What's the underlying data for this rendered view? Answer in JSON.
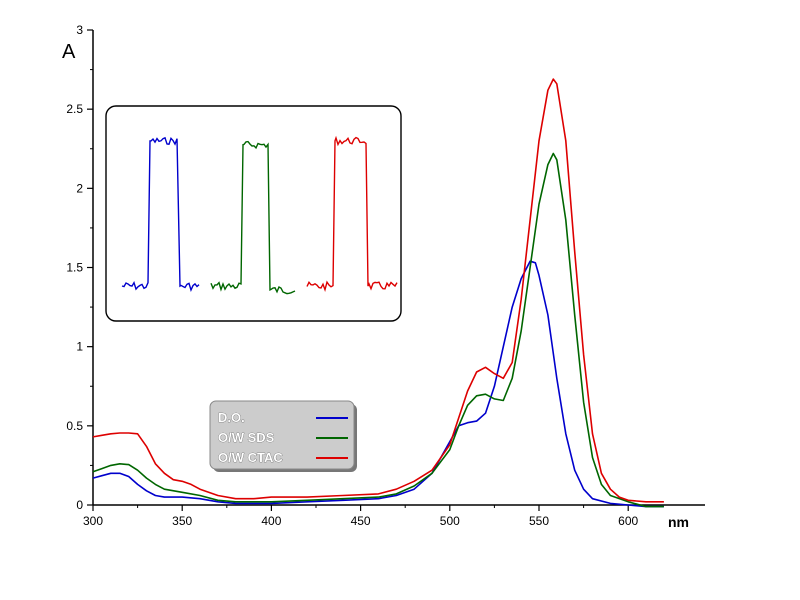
{
  "chart_data": {
    "type": "line",
    "ylabel": "A",
    "xlabel": "nm",
    "xlim": [
      300,
      620
    ],
    "ylim": [
      0,
      3
    ],
    "x_ticks": [
      "300",
      "350",
      "400",
      "450",
      "500",
      "550",
      "600"
    ],
    "y_ticks": [
      "0",
      "0.5",
      "1",
      "1.5",
      "2",
      "2.5",
      "3"
    ],
    "grid": false,
    "legend_position": "lower-left",
    "series": [
      {
        "name": "D.O.",
        "color": "#0000cc",
        "points": [
          [
            300,
            0.17
          ],
          [
            305,
            0.185
          ],
          [
            310,
            0.2
          ],
          [
            315,
            0.2
          ],
          [
            320,
            0.18
          ],
          [
            325,
            0.13
          ],
          [
            330,
            0.09
          ],
          [
            335,
            0.06
          ],
          [
            340,
            0.05
          ],
          [
            350,
            0.05
          ],
          [
            360,
            0.04
          ],
          [
            370,
            0.02
          ],
          [
            380,
            0.01
          ],
          [
            390,
            0.01
          ],
          [
            400,
            0.01
          ],
          [
            420,
            0.02
          ],
          [
            440,
            0.03
          ],
          [
            460,
            0.04
          ],
          [
            470,
            0.06
          ],
          [
            480,
            0.1
          ],
          [
            490,
            0.2
          ],
          [
            500,
            0.4
          ],
          [
            505,
            0.5
          ],
          [
            510,
            0.52
          ],
          [
            515,
            0.53
          ],
          [
            520,
            0.58
          ],
          [
            525,
            0.75
          ],
          [
            530,
            1.0
          ],
          [
            535,
            1.25
          ],
          [
            540,
            1.43
          ],
          [
            545,
            1.54
          ],
          [
            548,
            1.53
          ],
          [
            550,
            1.45
          ],
          [
            555,
            1.2
          ],
          [
            560,
            0.8
          ],
          [
            565,
            0.45
          ],
          [
            570,
            0.22
          ],
          [
            575,
            0.1
          ],
          [
            580,
            0.04
          ],
          [
            590,
            0.01
          ],
          [
            600,
            0.0
          ],
          [
            610,
            -0.01
          ],
          [
            620,
            -0.01
          ]
        ]
      },
      {
        "name": "O/W SDS",
        "color": "#006600",
        "points": [
          [
            300,
            0.21
          ],
          [
            305,
            0.23
          ],
          [
            310,
            0.25
          ],
          [
            315,
            0.26
          ],
          [
            320,
            0.255
          ],
          [
            325,
            0.22
          ],
          [
            330,
            0.17
          ],
          [
            335,
            0.13
          ],
          [
            340,
            0.1
          ],
          [
            350,
            0.08
          ],
          [
            360,
            0.06
          ],
          [
            370,
            0.03
          ],
          [
            380,
            0.02
          ],
          [
            390,
            0.02
          ],
          [
            400,
            0.02
          ],
          [
            420,
            0.03
          ],
          [
            440,
            0.04
          ],
          [
            460,
            0.05
          ],
          [
            470,
            0.07
          ],
          [
            480,
            0.12
          ],
          [
            490,
            0.2
          ],
          [
            500,
            0.35
          ],
          [
            505,
            0.5
          ],
          [
            510,
            0.63
          ],
          [
            515,
            0.69
          ],
          [
            520,
            0.7
          ],
          [
            525,
            0.67
          ],
          [
            530,
            0.66
          ],
          [
            535,
            0.8
          ],
          [
            540,
            1.1
          ],
          [
            545,
            1.5
          ],
          [
            550,
            1.9
          ],
          [
            555,
            2.15
          ],
          [
            558,
            2.22
          ],
          [
            560,
            2.18
          ],
          [
            565,
            1.8
          ],
          [
            570,
            1.2
          ],
          [
            575,
            0.65
          ],
          [
            580,
            0.3
          ],
          [
            585,
            0.13
          ],
          [
            590,
            0.06
          ],
          [
            600,
            0.02
          ],
          [
            610,
            -0.01
          ],
          [
            620,
            -0.01
          ]
        ]
      },
      {
        "name": "O/W CTAC",
        "color": "#dd0000",
        "points": [
          [
            300,
            0.43
          ],
          [
            305,
            0.44
          ],
          [
            310,
            0.45
          ],
          [
            315,
            0.455
          ],
          [
            320,
            0.455
          ],
          [
            325,
            0.45
          ],
          [
            330,
            0.37
          ],
          [
            335,
            0.26
          ],
          [
            340,
            0.2
          ],
          [
            345,
            0.16
          ],
          [
            350,
            0.15
          ],
          [
            355,
            0.13
          ],
          [
            360,
            0.1
          ],
          [
            370,
            0.06
          ],
          [
            380,
            0.04
          ],
          [
            390,
            0.04
          ],
          [
            400,
            0.05
          ],
          [
            420,
            0.05
          ],
          [
            440,
            0.06
          ],
          [
            460,
            0.07
          ],
          [
            470,
            0.1
          ],
          [
            480,
            0.15
          ],
          [
            490,
            0.22
          ],
          [
            500,
            0.38
          ],
          [
            505,
            0.55
          ],
          [
            510,
            0.72
          ],
          [
            515,
            0.84
          ],
          [
            520,
            0.87
          ],
          [
            525,
            0.83
          ],
          [
            530,
            0.8
          ],
          [
            535,
            0.9
          ],
          [
            540,
            1.3
          ],
          [
            545,
            1.8
          ],
          [
            550,
            2.3
          ],
          [
            555,
            2.62
          ],
          [
            558,
            2.69
          ],
          [
            560,
            2.66
          ],
          [
            565,
            2.3
          ],
          [
            570,
            1.6
          ],
          [
            575,
            0.95
          ],
          [
            580,
            0.45
          ],
          [
            585,
            0.2
          ],
          [
            590,
            0.1
          ],
          [
            595,
            0.05
          ],
          [
            600,
            0.03
          ],
          [
            610,
            0.02
          ],
          [
            620,
            0.02
          ]
        ]
      }
    ],
    "inset": {
      "type": "line",
      "traces": [
        {
          "color": "#0000cc",
          "levels": [
            0.12,
            0.88,
            0.12
          ]
        },
        {
          "color": "#006600",
          "levels": [
            0.12,
            0.86,
            0.1
          ]
        },
        {
          "color": "#dd0000",
          "levels": [
            0.12,
            0.88,
            0.12
          ]
        }
      ]
    }
  }
}
